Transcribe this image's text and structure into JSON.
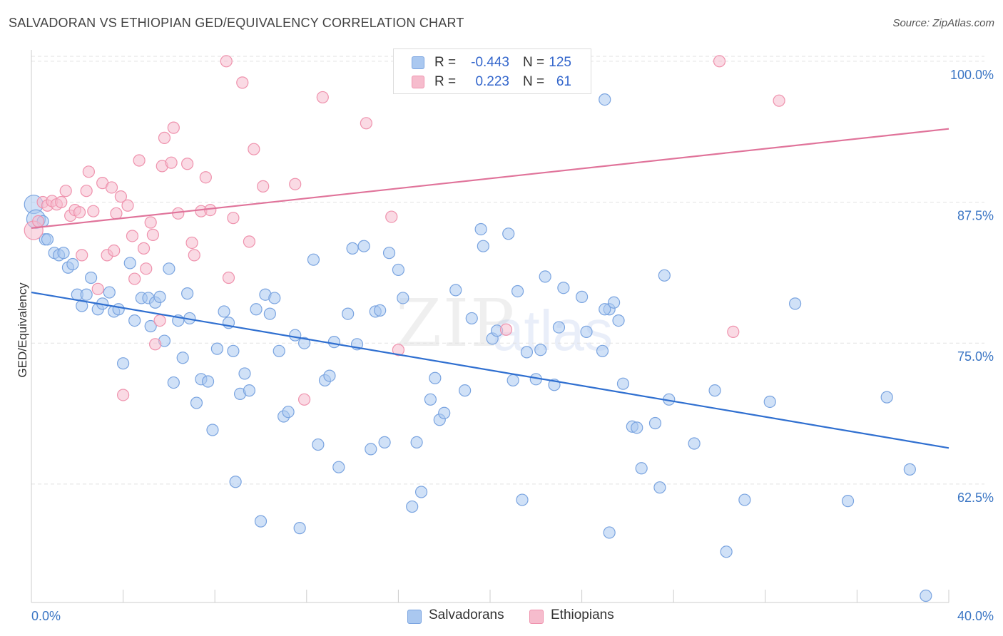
{
  "header": {
    "title": "SALVADORAN VS ETHIOPIAN GED/EQUIVALENCY CORRELATION CHART",
    "source": "Source: ZipAtlas.com"
  },
  "legend": {
    "rows": [
      {
        "r_label": "R =",
        "r_value": "-0.443",
        "n_label": "N =",
        "n_value": "125"
      },
      {
        "r_label": "R =",
        "r_value": "0.223",
        "n_label": "N =",
        "n_value": "61"
      }
    ]
  },
  "bottom_legend": [
    "Salvadorans",
    "Ethiopians"
  ],
  "watermark": {
    "zip": "ZIP",
    "atlas": "atlas"
  },
  "colors": {
    "blue_fill": "#aac8f0",
    "blue_stroke": "#7aa4e0",
    "blue_line": "#2f6fd0",
    "pink_fill": "#f6bccd",
    "pink_stroke": "#ef92ad",
    "pink_line": "#e0739a",
    "axis_label": "#3a75c4",
    "grid": "#e2e2e2"
  },
  "chart_data": {
    "type": "scatter",
    "title": "SALVADORAN VS ETHIOPIAN GED/EQUIVALENCY CORRELATION CHART",
    "xlabel": "",
    "ylabel": "GED/Equivalency",
    "xlim": [
      0,
      40
    ],
    "ylim": [
      52,
      101
    ],
    "x_tick_labels": [
      "0.0%",
      "40.0%"
    ],
    "y_ticks": [
      62.5,
      75.0,
      87.5,
      100.0
    ],
    "y_tick_labels": [
      "62.5%",
      "75.0%",
      "87.5%",
      "100.0%"
    ],
    "grid": true,
    "legend_position": "top-center",
    "series": [
      {
        "name": "Salvadorans",
        "r": -0.443,
        "n": 125,
        "trend": {
          "x": [
            0,
            40
          ],
          "y": [
            79.5,
            65.7
          ]
        },
        "points": [
          [
            0.1,
            87.3
          ],
          [
            0.2,
            86.0
          ],
          [
            0.5,
            85.8
          ],
          [
            0.6,
            84.2
          ],
          [
            0.7,
            84.2
          ],
          [
            1.0,
            83.0
          ],
          [
            1.2,
            82.8
          ],
          [
            1.4,
            83.0
          ],
          [
            1.6,
            81.7
          ],
          [
            1.8,
            82.0
          ],
          [
            2.0,
            79.3
          ],
          [
            2.2,
            78.3
          ],
          [
            2.4,
            79.3
          ],
          [
            2.6,
            80.8
          ],
          [
            2.9,
            78.0
          ],
          [
            3.1,
            78.5
          ],
          [
            3.4,
            79.5
          ],
          [
            3.6,
            77.8
          ],
          [
            3.8,
            78.0
          ],
          [
            4.0,
            73.2
          ],
          [
            4.3,
            82.1
          ],
          [
            4.5,
            77.0
          ],
          [
            4.8,
            79.0
          ],
          [
            5.1,
            79.0
          ],
          [
            5.2,
            76.5
          ],
          [
            5.4,
            78.6
          ],
          [
            5.6,
            79.1
          ],
          [
            5.8,
            75.2
          ],
          [
            6.0,
            81.6
          ],
          [
            6.2,
            71.5
          ],
          [
            6.4,
            77.0
          ],
          [
            6.6,
            73.7
          ],
          [
            6.8,
            79.4
          ],
          [
            6.9,
            77.2
          ],
          [
            7.2,
            69.7
          ],
          [
            7.4,
            71.8
          ],
          [
            7.7,
            71.6
          ],
          [
            7.9,
            67.3
          ],
          [
            8.1,
            74.5
          ],
          [
            8.4,
            77.8
          ],
          [
            8.6,
            76.8
          ],
          [
            8.8,
            74.3
          ],
          [
            8.9,
            62.7
          ],
          [
            9.1,
            70.5
          ],
          [
            9.3,
            72.3
          ],
          [
            9.5,
            70.8
          ],
          [
            9.8,
            78.0
          ],
          [
            10.0,
            59.2
          ],
          [
            10.2,
            79.3
          ],
          [
            10.4,
            77.6
          ],
          [
            10.6,
            79.0
          ],
          [
            10.8,
            74.3
          ],
          [
            11.0,
            68.5
          ],
          [
            11.2,
            68.9
          ],
          [
            11.5,
            75.7
          ],
          [
            11.7,
            58.6
          ],
          [
            11.9,
            75.0
          ],
          [
            12.3,
            82.4
          ],
          [
            12.5,
            66.0
          ],
          [
            12.8,
            71.7
          ],
          [
            13.0,
            72.1
          ],
          [
            13.2,
            75.1
          ],
          [
            13.4,
            64.0
          ],
          [
            13.8,
            77.6
          ],
          [
            14.0,
            83.4
          ],
          [
            14.2,
            74.9
          ],
          [
            14.5,
            83.6
          ],
          [
            14.8,
            65.6
          ],
          [
            15.0,
            77.8
          ],
          [
            15.2,
            77.9
          ],
          [
            15.4,
            66.2
          ],
          [
            15.6,
            83.0
          ],
          [
            16.0,
            81.5
          ],
          [
            16.2,
            79.0
          ],
          [
            16.6,
            60.5
          ],
          [
            16.8,
            66.2
          ],
          [
            17.0,
            61.8
          ],
          [
            17.4,
            70.0
          ],
          [
            17.6,
            71.9
          ],
          [
            17.8,
            68.2
          ],
          [
            18.0,
            68.8
          ],
          [
            18.5,
            79.7
          ],
          [
            18.9,
            70.8
          ],
          [
            19.2,
            77.2
          ],
          [
            19.6,
            85.1
          ],
          [
            19.7,
            83.6
          ],
          [
            20.1,
            75.4
          ],
          [
            20.3,
            76.1
          ],
          [
            20.8,
            84.7
          ],
          [
            21.0,
            71.7
          ],
          [
            21.2,
            79.6
          ],
          [
            21.4,
            61.1
          ],
          [
            21.6,
            74.2
          ],
          [
            22.0,
            71.8
          ],
          [
            22.2,
            74.4
          ],
          [
            22.4,
            80.9
          ],
          [
            22.8,
            71.3
          ],
          [
            23.0,
            76.4
          ],
          [
            23.2,
            79.9
          ],
          [
            24.0,
            79.1
          ],
          [
            24.2,
            76.0
          ],
          [
            24.9,
            74.3
          ],
          [
            25.2,
            78.0
          ],
          [
            25.6,
            77.0
          ],
          [
            25.0,
            78.0
          ],
          [
            25.4,
            78.6
          ],
          [
            25.0,
            96.6
          ],
          [
            25.2,
            58.2
          ],
          [
            25.8,
            71.4
          ],
          [
            26.2,
            67.6
          ],
          [
            26.4,
            67.5
          ],
          [
            26.6,
            63.9
          ],
          [
            27.2,
            67.9
          ],
          [
            27.4,
            62.2
          ],
          [
            27.6,
            81.0
          ],
          [
            27.8,
            70.0
          ],
          [
            28.9,
            66.1
          ],
          [
            29.8,
            70.8
          ],
          [
            30.3,
            56.5
          ],
          [
            31.1,
            61.1
          ],
          [
            32.2,
            69.8
          ],
          [
            33.3,
            78.5
          ],
          [
            35.6,
            61.0
          ],
          [
            37.3,
            70.2
          ],
          [
            38.3,
            63.8
          ],
          [
            39.0,
            52.6
          ]
        ]
      },
      {
        "name": "Ethiopians",
        "r": 0.223,
        "n": 61,
        "trend": {
          "x": [
            0,
            40
          ],
          "y": [
            85.2,
            94.0
          ]
        },
        "points": [
          [
            0.1,
            85.0
          ],
          [
            0.3,
            85.8
          ],
          [
            0.5,
            87.5
          ],
          [
            0.7,
            87.2
          ],
          [
            0.9,
            87.6
          ],
          [
            1.1,
            87.3
          ],
          [
            1.3,
            87.5
          ],
          [
            1.5,
            88.5
          ],
          [
            1.7,
            86.3
          ],
          [
            1.9,
            86.8
          ],
          [
            2.1,
            86.6
          ],
          [
            2.2,
            82.8
          ],
          [
            2.4,
            88.5
          ],
          [
            2.5,
            90.2
          ],
          [
            2.7,
            86.7
          ],
          [
            2.9,
            79.8
          ],
          [
            3.1,
            89.2
          ],
          [
            3.3,
            82.8
          ],
          [
            3.5,
            88.8
          ],
          [
            3.6,
            83.2
          ],
          [
            3.7,
            86.5
          ],
          [
            3.9,
            88.0
          ],
          [
            4.0,
            70.4
          ],
          [
            4.2,
            87.2
          ],
          [
            4.4,
            84.5
          ],
          [
            4.5,
            80.7
          ],
          [
            4.7,
            91.2
          ],
          [
            4.9,
            83.4
          ],
          [
            5.0,
            81.6
          ],
          [
            5.2,
            85.7
          ],
          [
            5.3,
            84.6
          ],
          [
            5.4,
            74.9
          ],
          [
            5.6,
            77.0
          ],
          [
            5.7,
            90.7
          ],
          [
            5.8,
            93.2
          ],
          [
            6.1,
            91.0
          ],
          [
            6.2,
            94.1
          ],
          [
            6.4,
            86.5
          ],
          [
            6.8,
            90.9
          ],
          [
            7.0,
            83.9
          ],
          [
            7.1,
            82.8
          ],
          [
            7.4,
            86.7
          ],
          [
            7.6,
            89.7
          ],
          [
            7.8,
            86.8
          ],
          [
            8.5,
            100.0
          ],
          [
            8.6,
            80.8
          ],
          [
            8.8,
            86.1
          ],
          [
            9.2,
            98.1
          ],
          [
            9.5,
            84.0
          ],
          [
            9.7,
            92.2
          ],
          [
            10.1,
            88.9
          ],
          [
            11.5,
            89.1
          ],
          [
            11.9,
            70.0
          ],
          [
            12.7,
            96.8
          ],
          [
            14.6,
            94.5
          ],
          [
            15.7,
            86.2
          ],
          [
            16.0,
            74.4
          ],
          [
            20.7,
            76.2
          ],
          [
            30.0,
            100.0
          ],
          [
            32.6,
            96.5
          ],
          [
            30.6,
            76.0
          ]
        ]
      }
    ]
  }
}
